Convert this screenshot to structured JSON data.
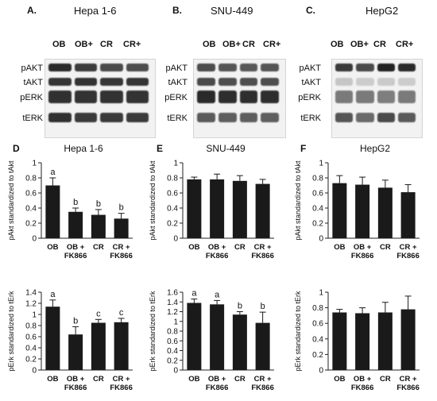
{
  "blots": [
    {
      "letter": "A.",
      "title": "Hepa 1-6",
      "lanes": [
        "OB",
        "OB+",
        "CR",
        "CR+"
      ],
      "rows": [
        "pAKT",
        "tAKT",
        "pERK",
        "tERK"
      ]
    },
    {
      "letter": "B.",
      "title": "SNU-449",
      "lanes": [
        "OB",
        "OB+",
        "CR",
        "CR+"
      ],
      "rows": [
        "pAKT",
        "tAKT",
        "pERK",
        "tERK"
      ]
    },
    {
      "letter": "C.",
      "title": "HepG2",
      "lanes": [
        "OB",
        "OB+",
        "CR",
        "CR+"
      ],
      "rows": [
        "pAKT",
        "tAKT",
        "pERK",
        "tERK"
      ]
    }
  ],
  "chart_data": [
    {
      "letter": "D",
      "title": "Hepa 1-6",
      "type": "bar",
      "categories": [
        "OB",
        "OB +\nFK866",
        "CR",
        "CR +\nFK866"
      ],
      "values": [
        0.7,
        0.35,
        0.31,
        0.26
      ],
      "errors": [
        0.1,
        0.05,
        0.07,
        0.07
      ],
      "sig": [
        "a",
        "b",
        "b",
        "b"
      ],
      "ylabel": "pAkt standardized to tAkt",
      "ylim": [
        0,
        1
      ],
      "yticks": [
        "0",
        "0.2",
        "0.4",
        "0.6",
        "0.8",
        "1"
      ]
    },
    {
      "letter": "E",
      "title": "SNU-449",
      "type": "bar",
      "categories": [
        "OB",
        "OB +\nFK866",
        "CR",
        "CR +\nFK866"
      ],
      "values": [
        0.78,
        0.78,
        0.76,
        0.72
      ],
      "errors": [
        0.03,
        0.07,
        0.07,
        0.06
      ],
      "sig": [
        "",
        "",
        "",
        ""
      ],
      "ylabel": "pAkt standardized to tAkt",
      "ylim": [
        0,
        1
      ],
      "yticks": [
        "0",
        "0.2",
        "0.4",
        "0.6",
        "0.8",
        "1"
      ]
    },
    {
      "letter": "F",
      "title": "HepG2",
      "type": "bar",
      "categories": [
        "OB",
        "OB +\nFK866",
        "CR",
        "CR +\nFK866"
      ],
      "values": [
        0.73,
        0.71,
        0.67,
        0.61
      ],
      "errors": [
        0.1,
        0.1,
        0.1,
        0.1
      ],
      "sig": [
        "",
        "",
        "",
        ""
      ],
      "ylabel": "pAkt standardized to tAkt",
      "ylim": [
        0,
        1
      ],
      "yticks": [
        "0",
        "0.2",
        "0.4",
        "0.6",
        "0.8",
        "1"
      ]
    },
    {
      "letter": "",
      "title": "",
      "type": "bar",
      "categories": [
        "OB",
        "OB +\nFK866",
        "CR",
        "CR +\nFK866"
      ],
      "values": [
        1.14,
        0.64,
        0.85,
        0.86
      ],
      "errors": [
        0.12,
        0.14,
        0.06,
        0.07
      ],
      "sig": [
        "a",
        "b",
        "c",
        "c"
      ],
      "ylabel": "pErk standardized to tErk",
      "ylim": [
        0,
        1.4
      ],
      "yticks": [
        "0",
        "0.2",
        "0.4",
        "0.6",
        "0.8",
        "1",
        "1.2",
        "1.4"
      ]
    },
    {
      "letter": "",
      "title": "",
      "type": "bar",
      "categories": [
        "OB",
        "OB +\nFK866",
        "CR",
        "CR +\nFK866"
      ],
      "values": [
        1.38,
        1.35,
        1.14,
        0.97
      ],
      "errors": [
        0.08,
        0.08,
        0.06,
        0.22
      ],
      "sig": [
        "a",
        "a",
        "b",
        "b"
      ],
      "ylabel": "pErk standardized to tErk",
      "ylim": [
        0,
        1.6
      ],
      "yticks": [
        "0",
        "0.2",
        "0.4",
        "0.6",
        "0.8",
        "1",
        "1.2",
        "1.4",
        "1.6"
      ]
    },
    {
      "letter": "",
      "title": "",
      "type": "bar",
      "categories": [
        "OB",
        "OB +\nFK866",
        "CR",
        "CR +\nFK866"
      ],
      "values": [
        0.74,
        0.73,
        0.74,
        0.78
      ],
      "errors": [
        0.04,
        0.07,
        0.13,
        0.17
      ],
      "sig": [
        "",
        "",
        "",
        ""
      ],
      "ylabel": "pErk standardized to tErk",
      "ylim": [
        0,
        1
      ],
      "yticks": [
        "0",
        "0.2",
        "0.4",
        "0.6",
        "0.8",
        "1"
      ]
    }
  ]
}
